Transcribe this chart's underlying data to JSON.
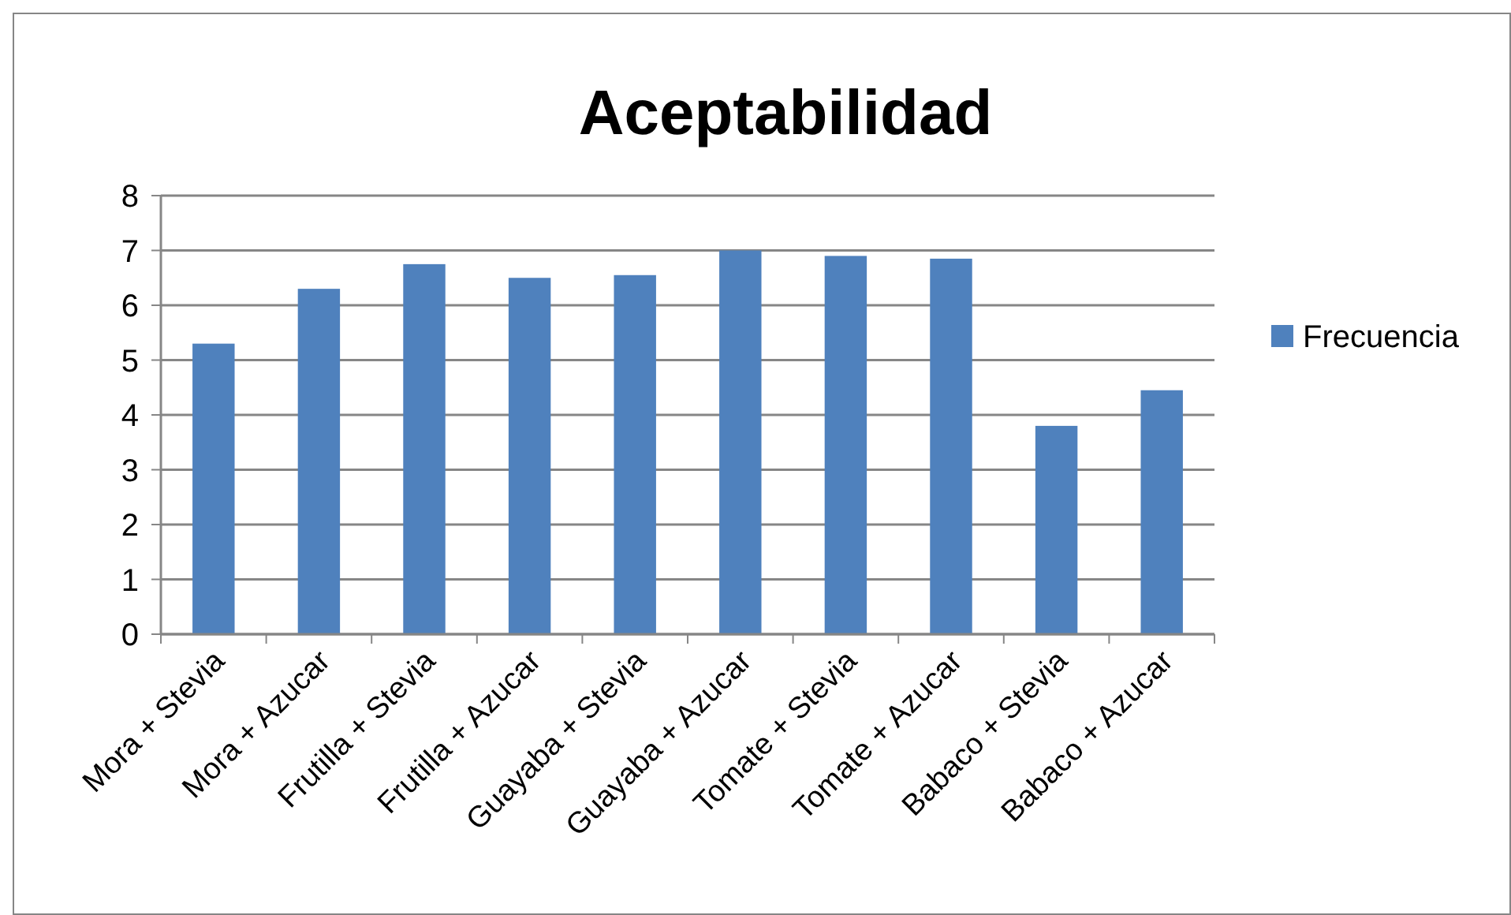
{
  "chart_data": {
    "type": "bar",
    "title": "Aceptabilidad",
    "categories": [
      "Mora + Stevia",
      "Mora + Azucar",
      "Frutilla + Stevia",
      "Frutilla + Azucar",
      "Guayaba + Stevia",
      "Guayaba + Azucar",
      "Tomate + Stevia",
      "Tomate + Azucar",
      "Babaco + Stevia",
      "Babaco + Azucar"
    ],
    "series": [
      {
        "name": "Frecuencia",
        "color": "#4f81bd",
        "values": [
          5.3,
          6.3,
          6.75,
          6.5,
          6.55,
          7.0,
          6.9,
          6.85,
          3.8,
          4.45
        ]
      }
    ],
    "ylim": [
      0,
      8
    ],
    "yticks": [
      0,
      1,
      2,
      3,
      4,
      5,
      6,
      7,
      8
    ],
    "grid": "y",
    "legend": "right"
  }
}
